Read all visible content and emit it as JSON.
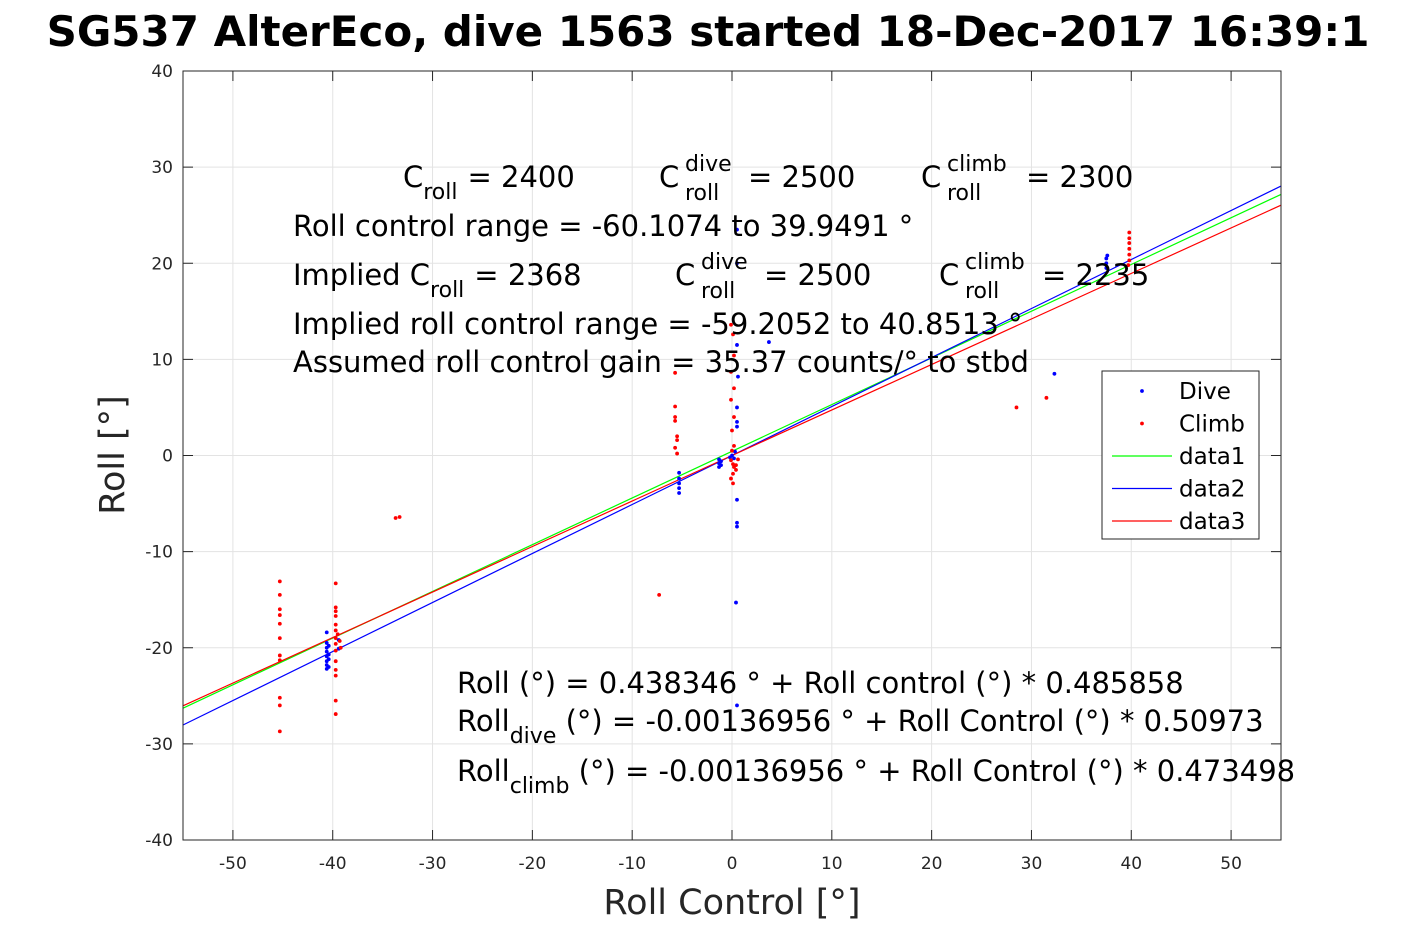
{
  "chart_data": {
    "type": "scatter",
    "title": "SG537 AlterEco, dive 1563 started 18-Dec-2017 16:39:1",
    "xlabel": "Roll Control [°]",
    "ylabel": "Roll [°]",
    "xlim": [
      -55,
      55
    ],
    "ylim": [
      -40,
      40
    ],
    "xticks": [
      -50,
      -40,
      -30,
      -20,
      -10,
      0,
      10,
      20,
      30,
      40,
      50
    ],
    "yticks": [
      -40,
      -30,
      -20,
      -10,
      0,
      10,
      20,
      30,
      40
    ],
    "grid": true,
    "legend_position": "right",
    "series": [
      {
        "name": "Dive",
        "kind": "points",
        "color": "#0000ff",
        "points": [
          [
            -40.6,
            -18.4
          ],
          [
            -40.6,
            -19.5
          ],
          [
            -40.6,
            -20.0
          ],
          [
            -40.6,
            -20.4
          ],
          [
            -40.6,
            -20.9
          ],
          [
            -40.6,
            -21.4
          ],
          [
            -40.6,
            -21.8
          ],
          [
            -40.6,
            -22.2
          ],
          [
            -40.4,
            -19.8
          ],
          [
            -40.4,
            -20.7
          ],
          [
            -40.4,
            -21.2
          ],
          [
            -40.4,
            -22.0
          ],
          [
            -39.4,
            -19.2
          ],
          [
            -39.4,
            -20.1
          ],
          [
            -5.3,
            -1.8
          ],
          [
            -5.3,
            -2.4
          ],
          [
            -5.3,
            -2.9
          ],
          [
            -5.3,
            -3.4
          ],
          [
            -5.3,
            -3.9
          ],
          [
            -1.3,
            -0.4
          ],
          [
            -1.3,
            -0.8
          ],
          [
            -1.3,
            -1.2
          ],
          [
            -1.1,
            -0.6
          ],
          [
            -1.1,
            -1.0
          ],
          [
            -0.2,
            -0.2
          ],
          [
            0.0,
            0.0
          ],
          [
            0.2,
            -0.3
          ],
          [
            0.3,
            0.4
          ],
          [
            0.5,
            23.5
          ],
          [
            0.5,
            20.0
          ],
          [
            0.5,
            11.5
          ],
          [
            0.6,
            8.2
          ],
          [
            0.5,
            5.0
          ],
          [
            0.5,
            3.5
          ],
          [
            0.5,
            3.0
          ],
          [
            0.5,
            -4.6
          ],
          [
            0.5,
            -7.0
          ],
          [
            0.5,
            -7.4
          ],
          [
            0.4,
            -15.3
          ],
          [
            0.5,
            -26.0
          ],
          [
            3.7,
            11.8
          ],
          [
            32.3,
            8.5
          ],
          [
            37.5,
            19.5
          ],
          [
            37.5,
            20.0
          ],
          [
            37.5,
            20.5
          ],
          [
            37.6,
            20.8
          ]
        ]
      },
      {
        "name": "Climb",
        "kind": "points",
        "color": "#ff0000",
        "points": [
          [
            -45.3,
            -13.1
          ],
          [
            -45.3,
            -14.5
          ],
          [
            -45.3,
            -16.0
          ],
          [
            -45.3,
            -16.6
          ],
          [
            -45.3,
            -17.5
          ],
          [
            -45.3,
            -19.0
          ],
          [
            -45.3,
            -20.8
          ],
          [
            -45.3,
            -21.3
          ],
          [
            -45.3,
            -25.2
          ],
          [
            -45.3,
            -26.0
          ],
          [
            -45.3,
            -28.7
          ],
          [
            -39.7,
            -13.3
          ],
          [
            -39.7,
            -15.8
          ],
          [
            -39.7,
            -16.2
          ],
          [
            -39.7,
            -16.7
          ],
          [
            -39.7,
            -17.6
          ],
          [
            -39.7,
            -18.2
          ],
          [
            -39.7,
            -19.0
          ],
          [
            -39.7,
            -19.6
          ],
          [
            -39.7,
            -20.3
          ],
          [
            -39.7,
            -21.4
          ],
          [
            -39.7,
            -22.3
          ],
          [
            -39.7,
            -22.9
          ],
          [
            -39.7,
            -25.5
          ],
          [
            -39.7,
            -26.9
          ],
          [
            -39.5,
            -18.6
          ],
          [
            -39.3,
            -19.3
          ],
          [
            -39.2,
            -20.0
          ],
          [
            -33.7,
            -6.5
          ],
          [
            -33.3,
            -6.4
          ],
          [
            -7.3,
            -14.5
          ],
          [
            -5.7,
            8.6
          ],
          [
            -5.7,
            5.1
          ],
          [
            -5.7,
            4.0
          ],
          [
            -5.7,
            3.6
          ],
          [
            -5.5,
            2.0
          ],
          [
            -5.5,
            1.6
          ],
          [
            -5.7,
            0.8
          ],
          [
            -5.5,
            0.2
          ],
          [
            -0.1,
            13.6
          ],
          [
            0.1,
            12.6
          ],
          [
            0.2,
            10.4
          ],
          [
            -0.1,
            8.7
          ],
          [
            0.2,
            7.0
          ],
          [
            -0.1,
            5.8
          ],
          [
            0.2,
            4.0
          ],
          [
            0.0,
            2.6
          ],
          [
            0.2,
            1.0
          ],
          [
            0.0,
            0.5
          ],
          [
            -0.1,
            -0.5
          ],
          [
            0.1,
            -0.9
          ],
          [
            0.2,
            -1.2
          ],
          [
            0.4,
            -1.5
          ],
          [
            0.1,
            -1.9
          ],
          [
            -0.1,
            -2.4
          ],
          [
            0.1,
            -2.9
          ],
          [
            0.4,
            -1.0
          ],
          [
            0.6,
            -0.4
          ],
          [
            28.5,
            5.0
          ],
          [
            31.5,
            6.0
          ],
          [
            39.8,
            23.2
          ],
          [
            39.8,
            22.6
          ],
          [
            39.8,
            22.1
          ],
          [
            39.8,
            21.5
          ],
          [
            39.8,
            20.9
          ],
          [
            39.8,
            20.3
          ],
          [
            39.7,
            19.8
          ]
        ]
      },
      {
        "name": "data1",
        "kind": "line",
        "color": "#00ff00",
        "intercept": 0.438346,
        "slope": 0.485858
      },
      {
        "name": "data2",
        "kind": "line",
        "color": "#0000ff",
        "intercept": -0.00136956,
        "slope": 0.50973
      },
      {
        "name": "data3",
        "kind": "line",
        "color": "#ff0000",
        "intercept": -0.00136956,
        "slope": 0.473498
      }
    ],
    "annotations": {
      "c_roll": {
        "base": "C",
        "sub": "roll",
        "value": "= 2400"
      },
      "c_roll_dive": {
        "base": "C",
        "sup": "dive",
        "sub": "roll",
        "value": "= 2500"
      },
      "c_roll_climb": {
        "base": "C",
        "sup": "climb",
        "sub": "roll",
        "value": "= 2300"
      },
      "roll_control_range": "Roll control range = -60.1074 to 39.9491 °",
      "implied_c_roll": {
        "prefix": "Implied C",
        "sub": "roll",
        "value": "= 2368"
      },
      "implied_c_roll_dive": {
        "base": "C",
        "sup": "dive",
        "sub": "roll",
        "value": "= 2500"
      },
      "implied_c_roll_climb": {
        "base": "C",
        "sup": "climb",
        "sub": "roll",
        "value": "= 2235"
      },
      "implied_range": "Implied roll control range = -59.2052 to 40.8513 °",
      "gain": "Assumed roll control gain = 35.37 counts/° to stbd",
      "fit_all": "Roll (°) = 0.438346 ° + Roll control (°) * 0.485858",
      "fit_dive": {
        "base": "Roll",
        "sub": "dive",
        "rest": " (°) = -0.00136956 ° + Roll Control (°) * 0.50973"
      },
      "fit_climb": {
        "base": "Roll",
        "sub": "climb",
        "rest": " (°) = -0.00136956 ° + Roll Control (°) * 0.473498"
      }
    }
  }
}
